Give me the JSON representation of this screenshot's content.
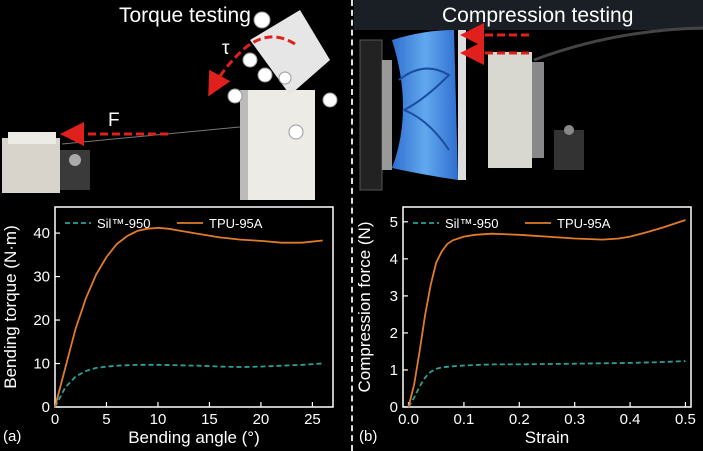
{
  "panels": {
    "left": {
      "photo_title": "Torque testing",
      "force_label": "F",
      "torque_label": "τ",
      "tag": "(a)"
    },
    "right": {
      "photo_title": "Compression testing",
      "tag": "(b)"
    }
  },
  "colors": {
    "sil": "#2aa198",
    "tpu": "#e07b2a",
    "arrow": "#e0201c",
    "axis": "#ffffff"
  },
  "chart_data": [
    {
      "type": "line",
      "xlabel": "Bending angle (°)",
      "ylabel": "Bending torque (N·m)",
      "xlim": [
        0,
        27
      ],
      "ylim": [
        0,
        46
      ],
      "xticks": [
        "0",
        "5",
        "10",
        "15",
        "20",
        "25"
      ],
      "yticks": [
        "0",
        "10",
        "20",
        "30",
        "40"
      ],
      "legend": [
        "Sil™-950",
        "TPU-95A"
      ],
      "series": [
        {
          "name": "Sil™-950",
          "style": "dashed",
          "x": [
            0,
            1,
            2,
            3,
            4,
            5,
            6,
            8,
            10,
            12,
            14,
            16,
            18,
            20,
            22,
            24,
            26
          ],
          "y": [
            0,
            4.5,
            7,
            8.3,
            9,
            9.3,
            9.5,
            9.7,
            9.7,
            9.6,
            9.5,
            9.3,
            9.2,
            9.3,
            9.5,
            9.7,
            10
          ]
        },
        {
          "name": "TPU-95A",
          "style": "solid",
          "x": [
            0,
            1,
            2,
            3,
            4,
            5,
            6,
            7,
            8,
            9,
            10,
            11,
            12,
            14,
            16,
            18,
            20,
            22,
            24,
            26
          ],
          "y": [
            0,
            9,
            18,
            25,
            30.5,
            34.5,
            37.5,
            39.3,
            40.5,
            41,
            41.2,
            41,
            40.6,
            39.8,
            39,
            38.5,
            38.2,
            37.8,
            37.8,
            38.3
          ]
        }
      ]
    },
    {
      "type": "line",
      "xlabel": "Strain",
      "ylabel": "Compression force (N)",
      "xlim": [
        -0.01,
        0.51
      ],
      "ylim": [
        0,
        5.4
      ],
      "xticks": [
        "0.0",
        "0.1",
        "0.2",
        "0.3",
        "0.4",
        "0.5"
      ],
      "yticks": [
        "0",
        "1",
        "2",
        "3",
        "4",
        "5"
      ],
      "legend": [
        "Sil™-950",
        "TPU-95A"
      ],
      "series": [
        {
          "name": "Sil™-950",
          "style": "dashed",
          "x": [
            0,
            0.01,
            0.02,
            0.03,
            0.04,
            0.05,
            0.06,
            0.08,
            0.1,
            0.15,
            0.2,
            0.25,
            0.3,
            0.35,
            0.4,
            0.45,
            0.5
          ],
          "y": [
            0,
            0.25,
            0.55,
            0.8,
            0.95,
            1.03,
            1.07,
            1.1,
            1.12,
            1.15,
            1.15,
            1.16,
            1.17,
            1.18,
            1.19,
            1.21,
            1.24
          ]
        },
        {
          "name": "TPU-95A",
          "style": "solid",
          "x": [
            0,
            0.01,
            0.02,
            0.03,
            0.04,
            0.05,
            0.06,
            0.07,
            0.08,
            0.1,
            0.12,
            0.15,
            0.2,
            0.25,
            0.3,
            0.35,
            0.38,
            0.4,
            0.43,
            0.46,
            0.5
          ],
          "y": [
            0,
            0.6,
            1.5,
            2.5,
            3.3,
            3.9,
            4.2,
            4.4,
            4.5,
            4.6,
            4.65,
            4.68,
            4.65,
            4.6,
            4.55,
            4.52,
            4.55,
            4.6,
            4.72,
            4.85,
            5.05
          ]
        }
      ]
    }
  ]
}
